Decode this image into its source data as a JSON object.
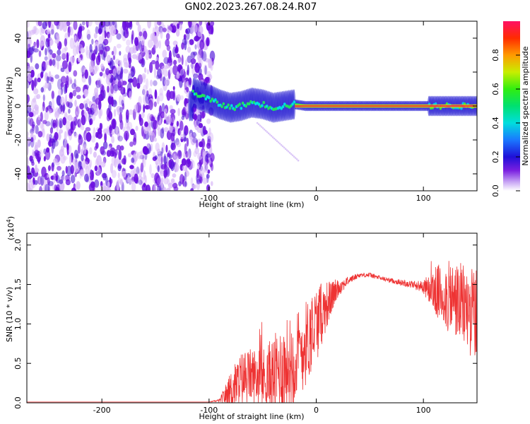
{
  "title": "GN02.2023.267.08.24.R07",
  "colors": {
    "snr_line": "#ee3333",
    "axis": "#000000",
    "noise_dark": "#6a0de0",
    "noise_light": "#d8b8f8"
  },
  "chart_data": [
    {
      "type": "heatmap",
      "xlabel": "Height of straight line (km)",
      "ylabel": "Frequency (Hz)",
      "xlim": [
        -270,
        150
      ],
      "ylim": [
        -50,
        50
      ],
      "xticks": [
        -200,
        -100,
        0,
        100
      ],
      "yticks": [
        40,
        20,
        0,
        -20,
        -40
      ],
      "grid": false,
      "noise_region_x": [
        -270,
        -110
      ],
      "signal_trace": {
        "x": [
          -115,
          -100,
          -90,
          -80,
          -70,
          -60,
          -50,
          -40,
          -30,
          -20,
          -10,
          0,
          50,
          100,
          110,
          130,
          150
        ],
        "y": [
          8,
          4,
          1,
          -1,
          0,
          2,
          1,
          -1,
          0,
          1,
          0,
          0,
          0,
          0,
          0,
          0,
          0
        ]
      },
      "colorbar": {
        "label": "Normalized spectral amplitude",
        "range": [
          0.0,
          1.0
        ],
        "ticks": [
          0.0,
          0.2,
          0.4,
          0.6,
          0.8
        ],
        "tick_labels": [
          "0.0",
          "0.2",
          "0.4",
          "0.6",
          "0.8"
        ],
        "colormap": "rainbow"
      }
    },
    {
      "type": "line",
      "xlabel": "Height of straight line (km)",
      "ylabel": "SNR (10 * v/v)",
      "multiplier_label": "(x10",
      "multiplier_exp": "4",
      "multiplier_close": ")",
      "xlim": [
        -270,
        150
      ],
      "ylim": [
        0,
        2.15
      ],
      "xticks": [
        -200,
        -100,
        0,
        100
      ],
      "yticks": [
        0.0,
        0.5,
        1.0,
        1.5,
        2.0
      ],
      "ytick_labels": [
        "0.0",
        "0.5",
        "1.0",
        "1.5",
        "2.0"
      ],
      "grid": false,
      "series": [
        {
          "x": [
            -270,
            -200,
            -150,
            -100,
            -90,
            -80,
            -70,
            -60,
            -50,
            -40,
            -30,
            -20,
            -10,
            0,
            10,
            20,
            30,
            40,
            50,
            60,
            70,
            80,
            90,
            100,
            110,
            120,
            130,
            140,
            150
          ],
          "y": [
            0.01,
            0.01,
            0.01,
            0.01,
            0.03,
            0.15,
            0.3,
            0.35,
            0.3,
            0.35,
            0.45,
            0.55,
            0.75,
            1.0,
            1.25,
            1.45,
            1.55,
            1.62,
            1.62,
            1.58,
            1.55,
            1.52,
            1.5,
            1.47,
            1.42,
            1.35,
            1.3,
            1.2,
            1.1
          ],
          "spread": [
            0,
            0,
            0,
            0,
            0.02,
            0.25,
            0.35,
            0.35,
            0.4,
            0.5,
            0.6,
            0.6,
            0.55,
            0.5,
            0.3,
            0.12,
            0.05,
            0.03,
            0.03,
            0.03,
            0.03,
            0.04,
            0.05,
            0.08,
            0.3,
            0.45,
            0.5,
            0.55,
            0.6
          ]
        }
      ]
    }
  ]
}
